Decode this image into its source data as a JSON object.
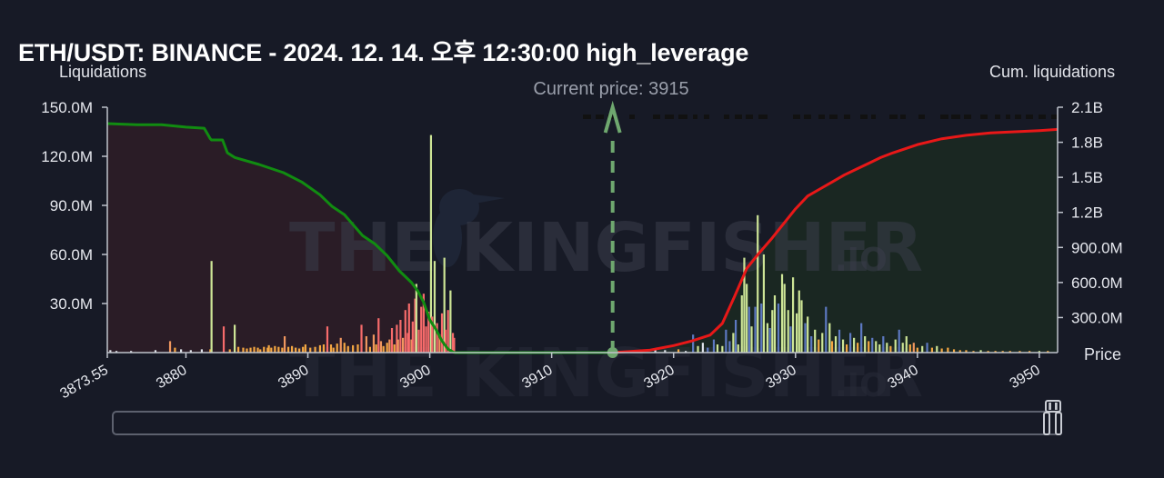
{
  "title": "ETH/USDT: BINANCE - 2024. 12. 14. 오후 12:30:00 high_leverage",
  "axes": {
    "left_title": "Liquidations",
    "right_title": "Cum. liquidations",
    "x_title": "Price"
  },
  "current_price_label": "Current price: 3915",
  "watermark": {
    "brand": "THE KINGFISHER",
    "suffix": ".IO"
  },
  "colors": {
    "background": "#171a26",
    "short_fill": "#2a1c26",
    "long_fill": "#1a2722",
    "cum_left": "#118c11",
    "cum_right": "#e81818",
    "current_price": "#6fa86f"
  },
  "chart_data": {
    "type": "bar",
    "title": "ETH/USDT: BINANCE - 2024. 12. 14. 오후 12:30:00 high_leverage",
    "xlabel": "Price",
    "ylabel": "Liquidations",
    "y2label": "Cum. liquidations",
    "xlim": [
      3873.55,
      3951.5
    ],
    "ylim": [
      0,
      150000000
    ],
    "y2lim": [
      0,
      2100000000
    ],
    "x_ticks": [
      "3873.55",
      "3880",
      "3890",
      "3900",
      "3910",
      "3920",
      "3930",
      "3940",
      "3950"
    ],
    "x_tick_values": [
      3873.55,
      3880,
      3890,
      3900,
      3910,
      3920,
      3930,
      3940,
      3950
    ],
    "y_ticks": [
      "30.0M",
      "60.0M",
      "90.0M",
      "120.0M",
      "150.0M"
    ],
    "y_tick_values": [
      30000000,
      60000000,
      90000000,
      120000000,
      150000000
    ],
    "y2_ticks": [
      "300.0M",
      "600.0M",
      "900.0M",
      "1.2B",
      "1.5B",
      "1.8B",
      "2.1B"
    ],
    "y2_tick_values": [
      300000000,
      600000000,
      900000000,
      1200000000,
      1500000000,
      1800000000,
      2100000000
    ],
    "current_price": 3915,
    "bars": [
      {
        "x": 3873.8,
        "y": 1500000,
        "color": "#dfe3ea"
      },
      {
        "x": 3874.3,
        "y": 1000000,
        "color": "#dfe3ea"
      },
      {
        "x": 3875.5,
        "y": 1000000,
        "color": "#dfe3ea"
      },
      {
        "x": 3877.5,
        "y": 1500000,
        "color": "#dfe3ea"
      },
      {
        "x": 3878.7,
        "y": 7000000,
        "color": "#f0975f"
      },
      {
        "x": 3879.1,
        "y": 3000000,
        "color": "#f5a742"
      },
      {
        "x": 3879.6,
        "y": 2000000,
        "color": "#dfe3ea"
      },
      {
        "x": 3880.4,
        "y": 1500000,
        "color": "#dfe3ea"
      },
      {
        "x": 3881.3,
        "y": 2000000,
        "color": "#dfe3ea"
      },
      {
        "x": 3882.0,
        "y": 2000000,
        "color": "#f5a742"
      },
      {
        "x": 3882.1,
        "y": 56000000,
        "color": "#cde596"
      },
      {
        "x": 3883.1,
        "y": 16000000,
        "color": "#f76b6b"
      },
      {
        "x": 3883.6,
        "y": 2000000,
        "color": "#f5a742"
      },
      {
        "x": 3884.0,
        "y": 17000000,
        "color": "#cde596"
      },
      {
        "x": 3884.3,
        "y": 3500000,
        "color": "#f5a742"
      },
      {
        "x": 3884.7,
        "y": 3000000,
        "color": "#f5a742"
      },
      {
        "x": 3885.0,
        "y": 2500000,
        "color": "#f5a742"
      },
      {
        "x": 3885.3,
        "y": 3000000,
        "color": "#f5a742"
      },
      {
        "x": 3885.6,
        "y": 3500000,
        "color": "#f5a742"
      },
      {
        "x": 3885.9,
        "y": 3000000,
        "color": "#f5a742"
      },
      {
        "x": 3886.1,
        "y": 2000000,
        "color": "#f5a742"
      },
      {
        "x": 3886.4,
        "y": 3500000,
        "color": "#f5a742"
      },
      {
        "x": 3886.7,
        "y": 3000000,
        "color": "#f5a742"
      },
      {
        "x": 3886.8,
        "y": 4500000,
        "color": "#f5a742"
      },
      {
        "x": 3887.0,
        "y": 3000000,
        "color": "#f5a742"
      },
      {
        "x": 3887.3,
        "y": 4000000,
        "color": "#f5a742"
      },
      {
        "x": 3887.6,
        "y": 3500000,
        "color": "#f5a742"
      },
      {
        "x": 3887.9,
        "y": 3000000,
        "color": "#f5a742"
      },
      {
        "x": 3888.1,
        "y": 10000000,
        "color": "#f0975f"
      },
      {
        "x": 3888.4,
        "y": 3500000,
        "color": "#f5a742"
      },
      {
        "x": 3888.7,
        "y": 4000000,
        "color": "#f5a742"
      },
      {
        "x": 3889.0,
        "y": 3000000,
        "color": "#f5a742"
      },
      {
        "x": 3889.3,
        "y": 2500000,
        "color": "#f5a742"
      },
      {
        "x": 3889.6,
        "y": 3500000,
        "color": "#f5a742"
      },
      {
        "x": 3889.8,
        "y": 5000000,
        "color": "#f5a742"
      },
      {
        "x": 3890.2,
        "y": 3000000,
        "color": "#f5a742"
      },
      {
        "x": 3890.6,
        "y": 3500000,
        "color": "#f5a742"
      },
      {
        "x": 3891.0,
        "y": 4500000,
        "color": "#f5a742"
      },
      {
        "x": 3891.3,
        "y": 5000000,
        "color": "#f5a742"
      },
      {
        "x": 3891.6,
        "y": 16000000,
        "color": "#f76b6b"
      },
      {
        "x": 3891.9,
        "y": 5000000,
        "color": "#f5a742"
      },
      {
        "x": 3892.1,
        "y": 3000000,
        "color": "#f5a742"
      },
      {
        "x": 3892.4,
        "y": 5500000,
        "color": "#f5a742"
      },
      {
        "x": 3892.7,
        "y": 9000000,
        "color": "#f0975f"
      },
      {
        "x": 3893.0,
        "y": 6000000,
        "color": "#f5a742"
      },
      {
        "x": 3893.3,
        "y": 4000000,
        "color": "#f5a742"
      },
      {
        "x": 3893.7,
        "y": 4500000,
        "color": "#f5a742"
      },
      {
        "x": 3894.1,
        "y": 5000000,
        "color": "#f5a742"
      },
      {
        "x": 3894.4,
        "y": 17000000,
        "color": "#f76b6b"
      },
      {
        "x": 3894.8,
        "y": 10000000,
        "color": "#f0975f"
      },
      {
        "x": 3895.1,
        "y": 3500000,
        "color": "#f5a742"
      },
      {
        "x": 3895.4,
        "y": 11000000,
        "color": "#f0975f"
      },
      {
        "x": 3895.6,
        "y": 5000000,
        "color": "#f5a742"
      },
      {
        "x": 3895.8,
        "y": 21000000,
        "color": "#f76b6b"
      },
      {
        "x": 3896.0,
        "y": 7000000,
        "color": "#f0975f"
      },
      {
        "x": 3896.2,
        "y": 4000000,
        "color": "#f5a742"
      },
      {
        "x": 3896.5,
        "y": 6000000,
        "color": "#f5a742"
      },
      {
        "x": 3896.7,
        "y": 8000000,
        "color": "#f0975f"
      },
      {
        "x": 3896.9,
        "y": 15000000,
        "color": "#f76b6b"
      },
      {
        "x": 3897.1,
        "y": 5000000,
        "color": "#f5a742"
      },
      {
        "x": 3897.3,
        "y": 17000000,
        "color": "#f76b6b"
      },
      {
        "x": 3897.4,
        "y": 8000000,
        "color": "#f0975f"
      },
      {
        "x": 3897.6,
        "y": 20000000,
        "color": "#f76b6b"
      },
      {
        "x": 3897.8,
        "y": 9000000,
        "color": "#f0975f"
      },
      {
        "x": 3898.0,
        "y": 26000000,
        "color": "#f76b6b"
      },
      {
        "x": 3898.2,
        "y": 12000000,
        "color": "#f76b6b"
      },
      {
        "x": 3898.3,
        "y": 30000000,
        "color": "#f76b6b"
      },
      {
        "x": 3898.5,
        "y": 8000000,
        "color": "#f0975f"
      },
      {
        "x": 3898.6,
        "y": 19000000,
        "color": "#f76b6b"
      },
      {
        "x": 3898.8,
        "y": 33000000,
        "color": "#f76b6b"
      },
      {
        "x": 3898.9,
        "y": 42000000,
        "color": "#cde596"
      },
      {
        "x": 3899.1,
        "y": 14000000,
        "color": "#f76b6b"
      },
      {
        "x": 3899.3,
        "y": 28000000,
        "color": "#f76b6b"
      },
      {
        "x": 3899.5,
        "y": 36000000,
        "color": "#f76b6b"
      },
      {
        "x": 3899.7,
        "y": 16000000,
        "color": "#f76b6b"
      },
      {
        "x": 3899.9,
        "y": 25000000,
        "color": "#f76b6b"
      },
      {
        "x": 3900.1,
        "y": 133000000,
        "color": "#cde596"
      },
      {
        "x": 3900.2,
        "y": 22000000,
        "color": "#f76b6b"
      },
      {
        "x": 3900.4,
        "y": 56000000,
        "color": "#cde596"
      },
      {
        "x": 3900.6,
        "y": 18000000,
        "color": "#f76b6b"
      },
      {
        "x": 3900.8,
        "y": 11000000,
        "color": "#f0975f"
      },
      {
        "x": 3901.0,
        "y": 24000000,
        "color": "#f76b6b"
      },
      {
        "x": 3901.2,
        "y": 58000000,
        "color": "#cde596"
      },
      {
        "x": 3901.3,
        "y": 14000000,
        "color": "#f76b6b"
      },
      {
        "x": 3901.5,
        "y": 26000000,
        "color": "#f76b6b"
      },
      {
        "x": 3901.7,
        "y": 38000000,
        "color": "#cde596"
      },
      {
        "x": 3901.9,
        "y": 12000000,
        "color": "#f76b6b"
      },
      {
        "x": 3902.0,
        "y": 9000000,
        "color": "#f76b6b"
      },
      {
        "x": 3918.5,
        "y": 2500000,
        "color": "#dfe3ea"
      },
      {
        "x": 3919.3,
        "y": 1500000,
        "color": "#dfe3ea"
      },
      {
        "x": 3920.4,
        "y": 2000000,
        "color": "#f5a742"
      },
      {
        "x": 3921.0,
        "y": 1000000,
        "color": "#dfe3ea"
      },
      {
        "x": 3921.6,
        "y": 11000000,
        "color": "#5d79c2"
      },
      {
        "x": 3922.0,
        "y": 4000000,
        "color": "#cde596"
      },
      {
        "x": 3922.4,
        "y": 6000000,
        "color": "#dfe3ea"
      },
      {
        "x": 3922.8,
        "y": 3000000,
        "color": "#5d79c2"
      },
      {
        "x": 3923.3,
        "y": 8000000,
        "color": "#5d79c2"
      },
      {
        "x": 3923.6,
        "y": 5000000,
        "color": "#cde596"
      },
      {
        "x": 3924.0,
        "y": 4000000,
        "color": "#cde596"
      },
      {
        "x": 3924.3,
        "y": 14000000,
        "color": "#5d79c2"
      },
      {
        "x": 3924.6,
        "y": 7000000,
        "color": "#5d79c2"
      },
      {
        "x": 3924.9,
        "y": 12000000,
        "color": "#cde596"
      },
      {
        "x": 3925.1,
        "y": 20000000,
        "color": "#5d79c2"
      },
      {
        "x": 3925.3,
        "y": 5000000,
        "color": "#cde596"
      },
      {
        "x": 3925.6,
        "y": 35000000,
        "color": "#cde596"
      },
      {
        "x": 3925.8,
        "y": 58000000,
        "color": "#cde596"
      },
      {
        "x": 3926.0,
        "y": 42000000,
        "color": "#cde596"
      },
      {
        "x": 3926.2,
        "y": 28000000,
        "color": "#5d79c2"
      },
      {
        "x": 3926.4,
        "y": 16000000,
        "color": "#cde596"
      },
      {
        "x": 3926.7,
        "y": 28000000,
        "color": "#5d79c2"
      },
      {
        "x": 3926.9,
        "y": 84000000,
        "color": "#cde596"
      },
      {
        "x": 3927.2,
        "y": 30000000,
        "color": "#5d79c2"
      },
      {
        "x": 3927.4,
        "y": 60000000,
        "color": "#cde596"
      },
      {
        "x": 3927.7,
        "y": 18000000,
        "color": "#cde596"
      },
      {
        "x": 3927.9,
        "y": 15000000,
        "color": "#5d79c2"
      },
      {
        "x": 3928.1,
        "y": 26000000,
        "color": "#cde596"
      },
      {
        "x": 3928.3,
        "y": 35000000,
        "color": "#cde596"
      },
      {
        "x": 3928.6,
        "y": 30000000,
        "color": "#5d79c2"
      },
      {
        "x": 3928.9,
        "y": 48000000,
        "color": "#cde596"
      },
      {
        "x": 3929.1,
        "y": 42000000,
        "color": "#cde596"
      },
      {
        "x": 3929.4,
        "y": 26000000,
        "color": "#cde596"
      },
      {
        "x": 3929.6,
        "y": 16000000,
        "color": "#5d79c2"
      },
      {
        "x": 3929.8,
        "y": 46000000,
        "color": "#cde596"
      },
      {
        "x": 3930.1,
        "y": 24000000,
        "color": "#cde596"
      },
      {
        "x": 3930.3,
        "y": 38000000,
        "color": "#cde596"
      },
      {
        "x": 3930.5,
        "y": 32000000,
        "color": "#cde596"
      },
      {
        "x": 3930.8,
        "y": 18000000,
        "color": "#5d79c2"
      },
      {
        "x": 3931.0,
        "y": 22000000,
        "color": "#cde596"
      },
      {
        "x": 3931.3,
        "y": 10000000,
        "color": "#5d79c2"
      },
      {
        "x": 3931.6,
        "y": 14000000,
        "color": "#cde596"
      },
      {
        "x": 3931.9,
        "y": 8000000,
        "color": "#f5a742"
      },
      {
        "x": 3932.2,
        "y": 12000000,
        "color": "#cde596"
      },
      {
        "x": 3932.5,
        "y": 28000000,
        "color": "#5d79c2"
      },
      {
        "x": 3932.8,
        "y": 18000000,
        "color": "#cde596"
      },
      {
        "x": 3933.0,
        "y": 7000000,
        "color": "#f5a742"
      },
      {
        "x": 3933.3,
        "y": 10000000,
        "color": "#cde596"
      },
      {
        "x": 3933.6,
        "y": 14000000,
        "color": "#5d79c2"
      },
      {
        "x": 3933.9,
        "y": 8000000,
        "color": "#cde596"
      },
      {
        "x": 3934.2,
        "y": 5000000,
        "color": "#f5a742"
      },
      {
        "x": 3934.5,
        "y": 12000000,
        "color": "#5d79c2"
      },
      {
        "x": 3934.8,
        "y": 9000000,
        "color": "#cde596"
      },
      {
        "x": 3935.1,
        "y": 6000000,
        "color": "#f5a742"
      },
      {
        "x": 3935.4,
        "y": 18000000,
        "color": "#5d79c2"
      },
      {
        "x": 3935.7,
        "y": 10000000,
        "color": "#cde596"
      },
      {
        "x": 3936.0,
        "y": 7000000,
        "color": "#f5a742"
      },
      {
        "x": 3936.3,
        "y": 9000000,
        "color": "#5d79c2"
      },
      {
        "x": 3936.6,
        "y": 7000000,
        "color": "#cde596"
      },
      {
        "x": 3936.9,
        "y": 5000000,
        "color": "#cde596"
      },
      {
        "x": 3937.2,
        "y": 10000000,
        "color": "#5d79c2"
      },
      {
        "x": 3937.5,
        "y": 6000000,
        "color": "#cde596"
      },
      {
        "x": 3937.8,
        "y": 4000000,
        "color": "#f5a742"
      },
      {
        "x": 3938.2,
        "y": 8000000,
        "color": "#cde596"
      },
      {
        "x": 3938.5,
        "y": 14000000,
        "color": "#5d79c2"
      },
      {
        "x": 3938.8,
        "y": 6000000,
        "color": "#cde596"
      },
      {
        "x": 3939.1,
        "y": 10000000,
        "color": "#cde596"
      },
      {
        "x": 3939.4,
        "y": 5000000,
        "color": "#f5a742"
      },
      {
        "x": 3939.7,
        "y": 6000000,
        "color": "#f0975f"
      },
      {
        "x": 3940.0,
        "y": 3000000,
        "color": "#f5a742"
      },
      {
        "x": 3940.4,
        "y": 4000000,
        "color": "#cde596"
      },
      {
        "x": 3940.8,
        "y": 6000000,
        "color": "#5d79c2"
      },
      {
        "x": 3941.2,
        "y": 3000000,
        "color": "#f5a742"
      },
      {
        "x": 3941.6,
        "y": 4000000,
        "color": "#cde596"
      },
      {
        "x": 3942.0,
        "y": 2500000,
        "color": "#f5a742"
      },
      {
        "x": 3942.5,
        "y": 3000000,
        "color": "#f5a742"
      },
      {
        "x": 3943.0,
        "y": 2000000,
        "color": "#f5a742"
      },
      {
        "x": 3943.5,
        "y": 1500000,
        "color": "#f5a742"
      },
      {
        "x": 3944.0,
        "y": 1500000,
        "color": "#f5a742"
      },
      {
        "x": 3944.6,
        "y": 1000000,
        "color": "#f5a742"
      },
      {
        "x": 3945.2,
        "y": 1500000,
        "color": "#cde596"
      },
      {
        "x": 3945.8,
        "y": 1000000,
        "color": "#f5a742"
      },
      {
        "x": 3946.4,
        "y": 1000000,
        "color": "#f5a742"
      },
      {
        "x": 3947.0,
        "y": 1000000,
        "color": "#f5a742"
      },
      {
        "x": 3947.6,
        "y": 1000000,
        "color": "#f5a742"
      },
      {
        "x": 3948.4,
        "y": 1000000,
        "color": "#f5a742"
      },
      {
        "x": 3949.2,
        "y": 1000000,
        "color": "#f5a742"
      },
      {
        "x": 3950.0,
        "y": 1000000,
        "color": "#cde596"
      },
      {
        "x": 3950.7,
        "y": 1000000,
        "color": "#f5a742"
      }
    ],
    "series": [
      {
        "color": "#118c11",
        "x": [
          3873.55,
          3876,
          3878,
          3880,
          3881.5,
          3882,
          3882.1,
          3883,
          3883.4,
          3884,
          3886,
          3888,
          3889.5,
          3891,
          3892,
          3893,
          3894.5,
          3895.5,
          3896.5,
          3897.5,
          3898.5,
          3899,
          3899.5,
          3900,
          3900.5,
          3901,
          3901.5,
          3902
        ],
        "values": [
          1960000000,
          1950000000,
          1950000000,
          1930000000,
          1920000000,
          1830000000,
          1820000000,
          1820000000,
          1710000000,
          1670000000,
          1610000000,
          1540000000,
          1460000000,
          1350000000,
          1250000000,
          1180000000,
          1000000000,
          930000000,
          830000000,
          700000000,
          600000000,
          530000000,
          430000000,
          280000000,
          200000000,
          100000000,
          30000000,
          0
        ]
      },
      {
        "color": "#118c11",
        "x": [
          3902,
          3915
        ],
        "values": [
          0,
          0
        ]
      },
      {
        "color": "#e81818",
        "x": [
          3915,
          3918,
          3920,
          3921.5,
          3923,
          3924,
          3925,
          3926,
          3927,
          3928,
          3929,
          3930,
          3931,
          3932,
          3933,
          3934,
          3935,
          3936,
          3937,
          3938,
          3940,
          3942,
          3944,
          3946,
          3948,
          3950,
          3951.5
        ],
        "values": [
          0,
          20000000,
          60000000,
          100000000,
          150000000,
          250000000,
          480000000,
          720000000,
          850000000,
          970000000,
          1100000000,
          1230000000,
          1340000000,
          1400000000,
          1460000000,
          1520000000,
          1570000000,
          1620000000,
          1670000000,
          1710000000,
          1780000000,
          1830000000,
          1860000000,
          1880000000,
          1890000000,
          1900000000,
          1910000000
        ]
      }
    ],
    "grid": false,
    "legend": "none"
  }
}
